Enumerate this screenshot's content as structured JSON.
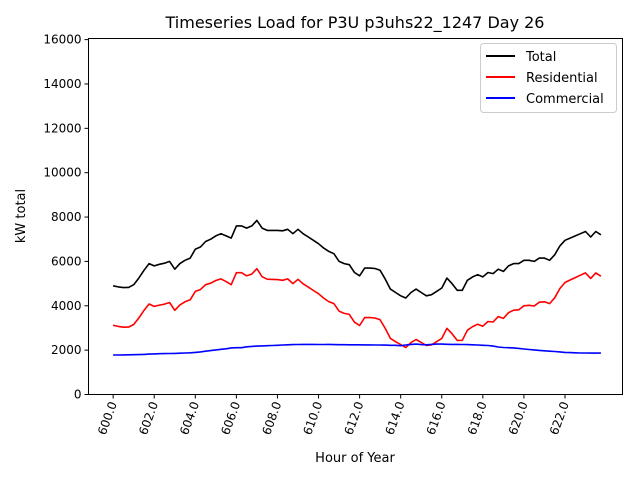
{
  "chart_data": {
    "type": "line",
    "title": "Timeseries Load for P3U p3uhs22_1247  Day 26",
    "xlabel": "Hour of Year",
    "ylabel": "kW total",
    "xlim": [
      598.8,
      624.8
    ],
    "ylim": [
      0,
      16050
    ],
    "x_start": 600,
    "x_step": 0.25,
    "xticks": [
      600,
      602,
      604,
      606,
      608,
      610,
      612,
      614,
      616,
      618,
      620,
      622
    ],
    "xtick_labels": [
      "600.0",
      "602.0",
      "604.0",
      "606.0",
      "608.0",
      "610.0",
      "612.0",
      "614.0",
      "616.0",
      "618.0",
      "620.0",
      "622.0"
    ],
    "yticks": [
      0,
      2000,
      4000,
      6000,
      8000,
      10000,
      12000,
      14000,
      16000
    ],
    "ytick_labels": [
      "0",
      "2000",
      "4000",
      "6000",
      "8000",
      "10000",
      "12000",
      "14000",
      "16000"
    ],
    "legend_position": "top-right",
    "grid": false,
    "series": [
      {
        "name": "Total",
        "color": "#000000",
        "values": [
          4900,
          4850,
          4820,
          4830,
          4950,
          5250,
          5600,
          5900,
          5800,
          5870,
          5920,
          6000,
          5650,
          5900,
          6050,
          6150,
          6550,
          6650,
          6900,
          7000,
          7150,
          7250,
          7150,
          7050,
          7600,
          7600,
          7500,
          7600,
          7850,
          7500,
          7400,
          7400,
          7400,
          7380,
          7450,
          7250,
          7450,
          7250,
          7100,
          6950,
          6800,
          6600,
          6450,
          6350,
          6000,
          5900,
          5850,
          5500,
          5350,
          5700,
          5700,
          5680,
          5600,
          5200,
          4750,
          4600,
          4450,
          4350,
          4600,
          4750,
          4600,
          4450,
          4500,
          4650,
          4800,
          5250,
          5000,
          4700,
          4700,
          5150,
          5300,
          5400,
          5300,
          5500,
          5450,
          5650,
          5550,
          5800,
          5900,
          5900,
          6050,
          6050,
          6000,
          6150,
          6150,
          6050,
          6300,
          6700,
          6950,
          7050,
          7150,
          7250,
          7350,
          7100,
          7350,
          7200
        ]
      },
      {
        "name": "Residential",
        "color": "#ff0000",
        "values": [
          3120,
          3070,
          3035,
          3040,
          3155,
          3450,
          3790,
          4080,
          3970,
          4030,
          4075,
          4150,
          3795,
          4040,
          4180,
          4270,
          4650,
          4730,
          4950,
          5020,
          5140,
          5210,
          5090,
          4950,
          5490,
          5490,
          5350,
          5430,
          5670,
          5310,
          5200,
          5190,
          5180,
          5150,
          5210,
          5000,
          5195,
          4990,
          4840,
          4690,
          4545,
          4345,
          4190,
          4100,
          3755,
          3655,
          3610,
          3260,
          3110,
          3465,
          3465,
          3450,
          3370,
          2975,
          2530,
          2380,
          2250,
          2120,
          2340,
          2480,
          2350,
          2210,
          2240,
          2380,
          2530,
          2985,
          2740,
          2440,
          2445,
          2900,
          3060,
          3170,
          3080,
          3290,
          3270,
          3510,
          3430,
          3690,
          3800,
          3820,
          4000,
          4020,
          3990,
          4160,
          4180,
          4100,
          4360,
          4780,
          5050,
          5160,
          5270,
          5380,
          5480,
          5235,
          5480,
          5335
        ]
      },
      {
        "name": "Commercial",
        "color": "#0000ff",
        "values": [
          1780,
          1780,
          1785,
          1790,
          1795,
          1800,
          1810,
          1820,
          1830,
          1840,
          1845,
          1850,
          1855,
          1860,
          1870,
          1880,
          1900,
          1920,
          1950,
          1980,
          2010,
          2040,
          2060,
          2100,
          2110,
          2110,
          2150,
          2170,
          2180,
          2190,
          2200,
          2210,
          2220,
          2230,
          2240,
          2250,
          2255,
          2260,
          2260,
          2260,
          2255,
          2255,
          2260,
          2250,
          2245,
          2245,
          2240,
          2240,
          2240,
          2235,
          2235,
          2230,
          2230,
          2225,
          2220,
          2220,
          2200,
          2230,
          2260,
          2270,
          2250,
          2240,
          2260,
          2270,
          2270,
          2265,
          2260,
          2260,
          2255,
          2250,
          2240,
          2230,
          2220,
          2210,
          2180,
          2140,
          2120,
          2110,
          2100,
          2080,
          2050,
          2030,
          2010,
          1990,
          1970,
          1950,
          1940,
          1920,
          1900,
          1890,
          1880,
          1870,
          1870,
          1865,
          1870,
          1865
        ]
      }
    ]
  }
}
